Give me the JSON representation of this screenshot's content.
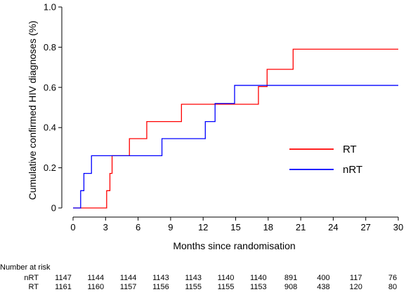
{
  "chart_data": {
    "type": "line",
    "step": true,
    "title": "",
    "xlabel": "Months since randomisation",
    "ylabel": "Cumulative confirmed HIV diagnoses (%)",
    "xlim": [
      0,
      30
    ],
    "ylim": [
      0,
      1.0
    ],
    "x_ticks": [
      "0",
      "3",
      "6",
      "9",
      "12",
      "15",
      "18",
      "21",
      "24",
      "27",
      "30"
    ],
    "y_ticks": [
      "0",
      "0.2",
      "0.4",
      "0.6",
      "0.8",
      "1.0"
    ],
    "grid": false,
    "legend_position": "right",
    "series": [
      {
        "name": "RT",
        "color": "#ff0000",
        "points": [
          [
            0,
            0
          ],
          [
            3.1,
            0.086
          ],
          [
            3.4,
            0.172
          ],
          [
            3.6,
            0.26
          ],
          [
            5.2,
            0.345
          ],
          [
            6.8,
            0.43
          ],
          [
            10.0,
            0.516
          ],
          [
            17.1,
            0.604
          ],
          [
            17.9,
            0.69
          ],
          [
            20.3,
            0.79
          ],
          [
            30,
            0.79
          ]
        ]
      },
      {
        "name": "nRT",
        "color": "#0000ff",
        "points": [
          [
            0,
            0
          ],
          [
            0.7,
            0.086
          ],
          [
            1.0,
            0.172
          ],
          [
            1.7,
            0.26
          ],
          [
            8.2,
            0.345
          ],
          [
            12.2,
            0.43
          ],
          [
            13.1,
            0.52
          ],
          [
            14.9,
            0.61
          ],
          [
            30,
            0.61
          ]
        ]
      }
    ],
    "risk_table": {
      "title": "Number at risk",
      "rows": [
        {
          "label": "nRT",
          "values": [
            "1147",
            "1144",
            "1144",
            "1143",
            "1143",
            "1140",
            "1140",
            "891",
            "400",
            "117",
            "76"
          ]
        },
        {
          "label": "RT",
          "values": [
            "1161",
            "1160",
            "1157",
            "1156",
            "1155",
            "1155",
            "1153",
            "908",
            "438",
            "120",
            "80"
          ]
        }
      ]
    }
  }
}
